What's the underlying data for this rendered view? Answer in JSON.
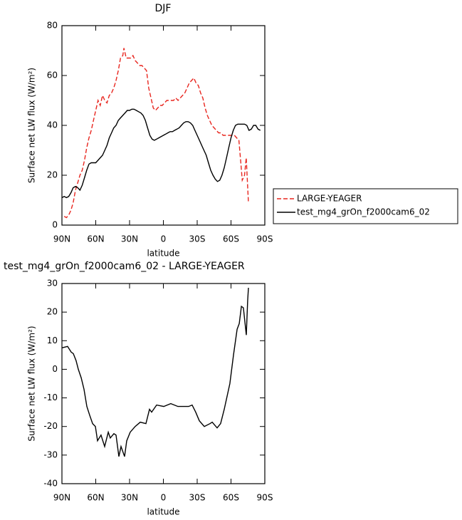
{
  "chart_data": [
    {
      "type": "line",
      "title": "DJF",
      "x_label": "latitude",
      "y_label": "Surface net LW flux (W/m²)",
      "xlim": [
        90,
        -90
      ],
      "xticks": [
        {
          "value": 90,
          "label": "90N"
        },
        {
          "value": 60,
          "label": "60N"
        },
        {
          "value": 30,
          "label": "30N"
        },
        0,
        {
          "value": -30,
          "label": "30S"
        },
        {
          "value": -60,
          "label": "60S"
        },
        {
          "value": -90,
          "label": "90S"
        }
      ],
      "ylim": [
        0,
        80
      ],
      "yticks": [
        0,
        20,
        40,
        60,
        80
      ],
      "legend_position": "right",
      "series": [
        {
          "name": "LARGE-YEAGER",
          "color": "#e8261f",
          "style": "dashed",
          "x": [
            88,
            86,
            84,
            82,
            80,
            78,
            76,
            74,
            72,
            70,
            68,
            66,
            64,
            62,
            60,
            58,
            56,
            54,
            52,
            50,
            48,
            46,
            44,
            42,
            40,
            38,
            36,
            35,
            33,
            31,
            29,
            27,
            25,
            23,
            21,
            19,
            17,
            15,
            13,
            11,
            9,
            7,
            5,
            3,
            1,
            -1,
            -3,
            -5,
            -7,
            -9,
            -11,
            -13,
            -15,
            -17,
            -19,
            -21,
            -23,
            -25,
            -27,
            -29,
            -31,
            -33,
            -35,
            -37,
            -39,
            -41,
            -43,
            -45,
            -47,
            -49,
            -51,
            -53,
            -55,
            -57,
            -59,
            -61,
            -63,
            -65,
            -67,
            -68.5,
            -70,
            -72,
            -73.5,
            -75.5
          ],
          "values": [
            3.5,
            3,
            4,
            6,
            9,
            14,
            17,
            20,
            22,
            26,
            31,
            35,
            38,
            42,
            46,
            50,
            48,
            52,
            50,
            49,
            52,
            53,
            55,
            58,
            62,
            67,
            68,
            71,
            67,
            67,
            67,
            68,
            66,
            65,
            64,
            64,
            63,
            62,
            55,
            51,
            47,
            46,
            47,
            48,
            48,
            49,
            50,
            50,
            50,
            50,
            51,
            50,
            51,
            52,
            53,
            55,
            57,
            58,
            59,
            57,
            56,
            53,
            51,
            47,
            44,
            42,
            40,
            39,
            38,
            37,
            37,
            36,
            36,
            36,
            36,
            36,
            36,
            35,
            34,
            26,
            18,
            20,
            27,
            9
          ]
        },
        {
          "name": "test_mg4_grOn_f2000cam6_02",
          "color": "#000000",
          "style": "solid",
          "x": [
            90,
            88,
            86,
            84,
            82,
            80,
            78,
            76,
            74,
            72,
            70,
            68,
            66,
            64,
            62,
            60,
            58,
            56,
            54,
            52,
            50,
            48,
            46,
            44,
            42,
            40,
            38,
            36,
            34,
            32,
            30,
            28,
            26,
            24,
            22,
            20,
            18,
            16,
            14,
            12,
            10,
            8,
            6,
            4,
            2,
            0,
            -2,
            -4,
            -6,
            -8,
            -10,
            -12,
            -14,
            -16,
            -18,
            -20,
            -22,
            -24,
            -26,
            -28,
            -30,
            -32,
            -34,
            -36,
            -38,
            -40,
            -42,
            -44,
            -46,
            -48,
            -50,
            -52,
            -54,
            -56,
            -58,
            -60,
            -62,
            -64,
            -66,
            -68,
            -70,
            -72,
            -74,
            -76,
            -78,
            -80,
            -82,
            -84,
            -86
          ],
          "values": [
            11,
            11.5,
            11,
            11.5,
            13,
            15,
            15.5,
            15,
            14,
            16,
            19,
            22,
            24.5,
            25,
            25,
            25,
            26,
            27,
            28,
            30,
            32,
            35,
            37,
            39,
            40,
            42,
            43,
            44,
            45,
            46,
            46,
            46.5,
            46.5,
            46,
            45.5,
            45,
            44,
            42,
            39,
            36,
            34.5,
            34,
            34.5,
            35,
            35.5,
            36,
            36.5,
            37,
            37.5,
            37.5,
            38,
            38.5,
            39,
            40,
            41,
            41.5,
            41.5,
            41,
            40,
            38,
            36,
            34,
            32,
            30,
            28,
            25,
            22,
            20,
            18.5,
            17.5,
            18,
            20,
            23,
            27,
            31,
            35,
            38,
            40,
            40.5,
            40.5,
            40.5,
            40.5,
            40,
            38,
            38.5,
            40,
            40,
            38.5,
            38
          ]
        }
      ]
    },
    {
      "type": "line",
      "title": "test_mg4_grOn_f2000cam6_02 - LARGE-YEAGER",
      "x_label": "latitude",
      "y_label": "Surface net LW flux (W/m²)",
      "xlim": [
        90,
        -90
      ],
      "xticks": [
        {
          "value": 90,
          "label": "90N"
        },
        {
          "value": 60,
          "label": "60N"
        },
        {
          "value": 30,
          "label": "30N"
        },
        0,
        {
          "value": -30,
          "label": "30S"
        },
        {
          "value": -60,
          "label": "60S"
        },
        {
          "value": -90,
          "label": "90S"
        }
      ],
      "ylim": [
        -40,
        30
      ],
      "yticks": [
        -40,
        -30,
        -20,
        -10,
        0,
        10,
        20,
        30
      ],
      "series": [
        {
          "color": "#000000",
          "style": "solid",
          "x": [
            90,
            85,
            81.8,
            79.9,
            77.4,
            75.5,
            72.9,
            70.4,
            67.9,
            65.4,
            62.8,
            60.3,
            58.4,
            55.3,
            52.1,
            48.9,
            47.1,
            43.9,
            42,
            39.5,
            37.6,
            34.4,
            32.5,
            29.4,
            25,
            20.5,
            15.5,
            12.3,
            10.4,
            6,
            -0.3,
            -6.6,
            -12.9,
            -22.4,
            -25.5,
            -28.7,
            -31.9,
            -36.3,
            -41.4,
            -43.3,
            -47.7,
            -50.8,
            -54,
            -59,
            -62.2,
            -65.4,
            -67.3,
            -69.2,
            -71,
            -73.6,
            -74.8,
            -75.5
          ],
          "values": [
            7.5,
            8,
            6,
            5.5,
            3,
            0,
            -3,
            -7,
            -13,
            -16,
            -19,
            -20,
            -25,
            -23,
            -27,
            -22,
            -24,
            -22.5,
            -23,
            -30.5,
            -27,
            -30.5,
            -25,
            -22,
            -20,
            -18.5,
            -19,
            -14,
            -15,
            -12.5,
            -13,
            -12,
            -13,
            -13,
            -12.5,
            -15,
            -18,
            -20,
            -19,
            -18.5,
            -20.5,
            -19,
            -14,
            -5,
            5,
            14,
            16,
            22,
            21.5,
            12,
            24,
            28.5
          ]
        }
      ]
    }
  ]
}
